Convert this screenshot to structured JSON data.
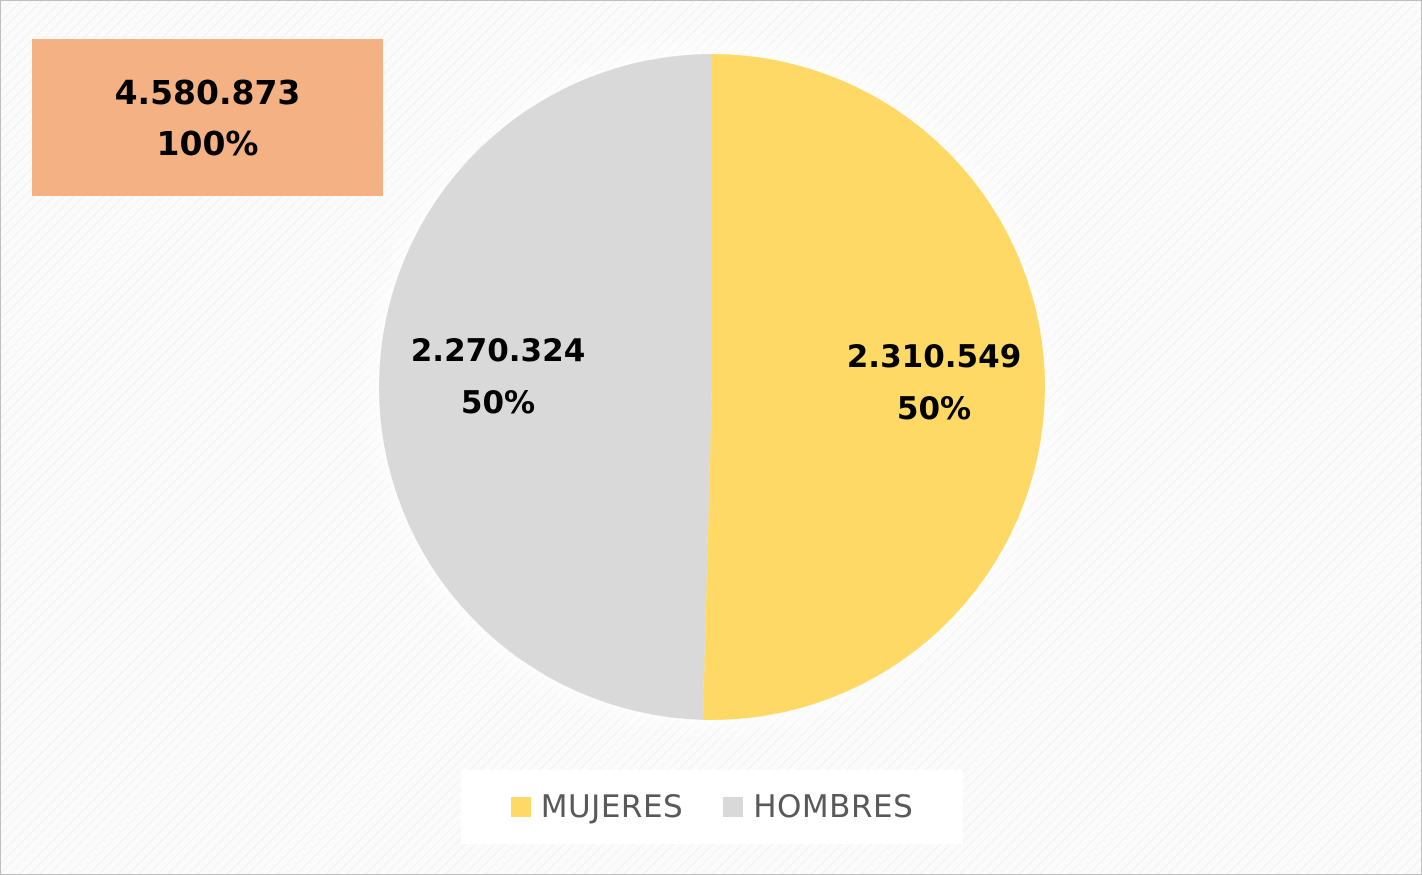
{
  "total": {
    "value_label": "4.580.873",
    "percent_label": "100%",
    "color": "#f4b183"
  },
  "chart_data": {
    "type": "pie",
    "title": "",
    "total": 4580873,
    "categories": [
      "MUJERES",
      "HOMBRES"
    ],
    "values": [
      2310549,
      2270324
    ],
    "value_labels": [
      "2.310.549",
      "2.270.324"
    ],
    "percent_labels": [
      "50%",
      "50%"
    ],
    "colors": [
      "#ffd966",
      "#d9d9d9"
    ],
    "start_angle": "12 o'clock",
    "direction": "clockwise",
    "legend_position": "bottom"
  }
}
